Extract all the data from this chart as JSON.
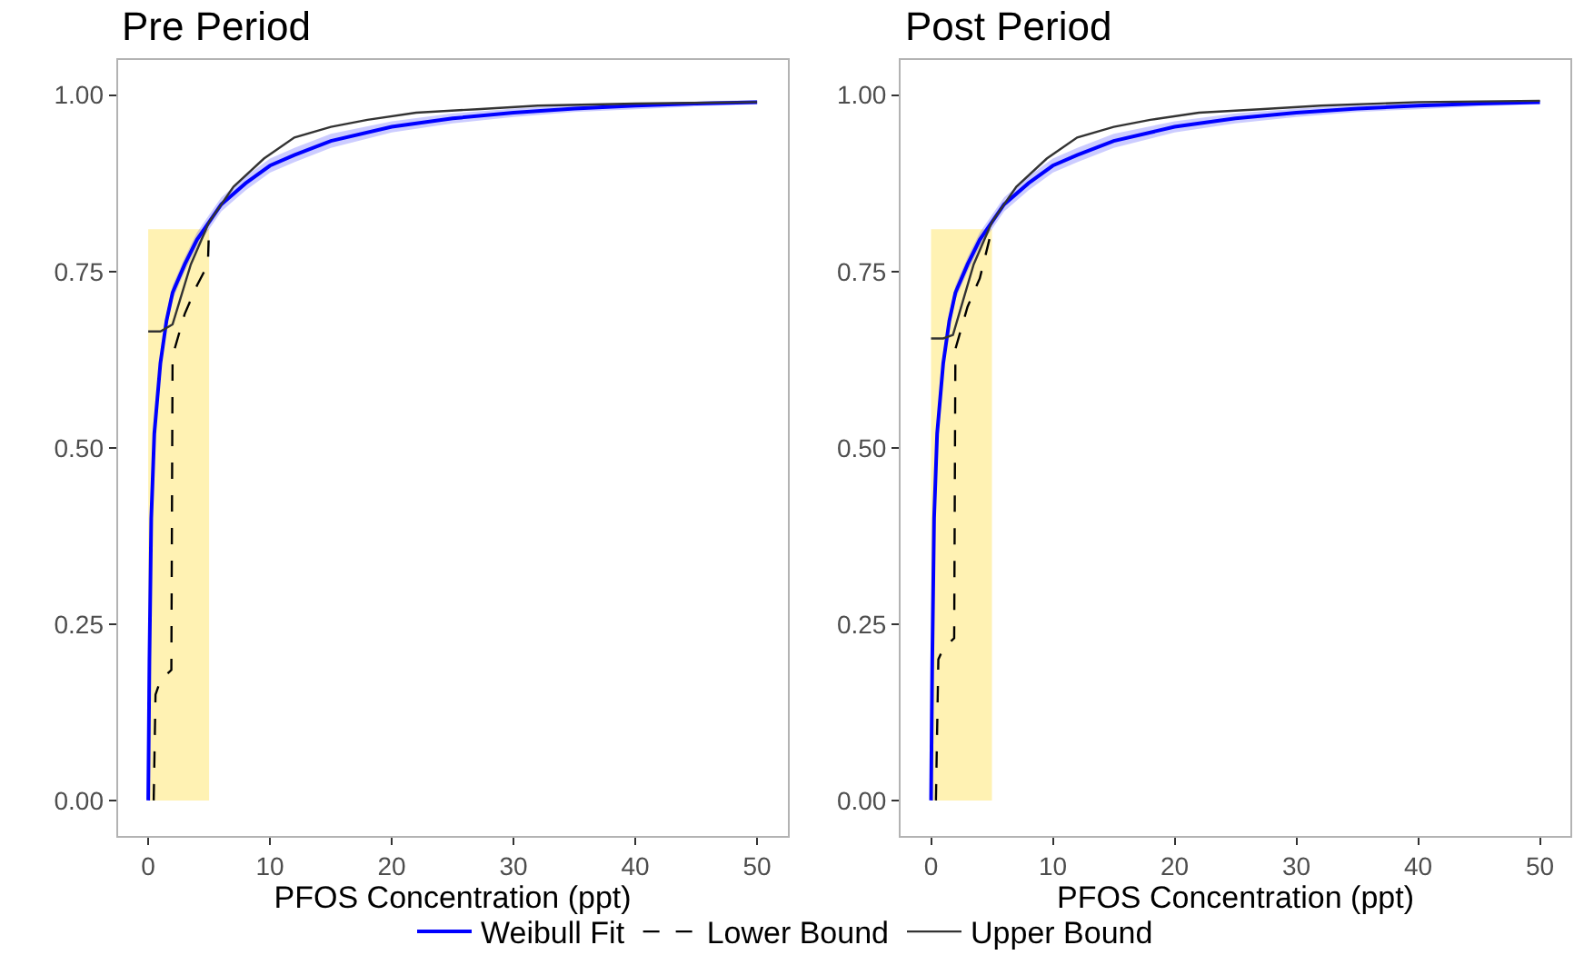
{
  "chart_data": [
    {
      "type": "line",
      "title": "Pre Period",
      "xlabel": "PFOS Concentration (ppt)",
      "xlim": [
        -2.5,
        52.5
      ],
      "ylim": [
        -0.05,
        1.05
      ],
      "xticks": [
        0,
        10,
        20,
        30,
        40,
        50
      ],
      "yticks": [
        {
          "value": 0,
          "label": "0.00"
        },
        {
          "value": 0.25,
          "label": "0.25"
        },
        {
          "value": 0.5,
          "label": "0.50"
        },
        {
          "value": 0.75,
          "label": "0.75"
        },
        {
          "value": 1,
          "label": "1.00"
        }
      ],
      "legend": "bottom",
      "series": [
        {
          "type": "area",
          "color": "#fff2b3",
          "x": [
            0,
            5
          ],
          "values": [
            0.81,
            0.81
          ]
        },
        {
          "name": "Weibull Fit",
          "color": "#0000ff",
          "x": [
            0,
            0.1,
            0.25,
            0.5,
            1,
            1.5,
            2,
            3,
            4,
            5,
            6,
            8,
            10,
            12,
            15,
            20,
            25,
            30,
            35,
            40,
            45,
            50
          ],
          "values": [
            0,
            0.2,
            0.4,
            0.52,
            0.62,
            0.68,
            0.72,
            0.76,
            0.795,
            0.82,
            0.845,
            0.875,
            0.9,
            0.915,
            0.935,
            0.955,
            0.967,
            0.975,
            0.981,
            0.985,
            0.988,
            0.99
          ],
          "lower": [
            0,
            0.19,
            0.39,
            0.51,
            0.61,
            0.67,
            0.71,
            0.75,
            0.785,
            0.81,
            0.835,
            0.865,
            0.89,
            0.905,
            0.925,
            0.947,
            0.96,
            0.969,
            0.976,
            0.98,
            0.984,
            0.987
          ],
          "upper": [
            0,
            0.21,
            0.41,
            0.53,
            0.63,
            0.69,
            0.73,
            0.77,
            0.805,
            0.83,
            0.855,
            0.885,
            0.91,
            0.925,
            0.945,
            0.963,
            0.974,
            0.981,
            0.986,
            0.989,
            0.991,
            0.993
          ]
        },
        {
          "name": "Lower Bound",
          "color": "#000000",
          "line_style": "dashed",
          "x": [
            0.45,
            0.6,
            1,
            1.9,
            2,
            3,
            4,
            4.9,
            5
          ],
          "values": [
            0,
            0.15,
            0.17,
            0.185,
            0.63,
            0.69,
            0.73,
            0.76,
            0.815
          ]
        },
        {
          "name": "Upper Bound",
          "color": "#333333",
          "x": [
            0,
            1,
            2,
            3.5,
            5,
            7,
            9.5,
            12,
            15,
            18,
            22,
            27,
            32,
            40,
            50
          ],
          "values": [
            0.665,
            0.665,
            0.675,
            0.76,
            0.82,
            0.87,
            0.91,
            0.94,
            0.955,
            0.965,
            0.975,
            0.98,
            0.985,
            0.988,
            0.99
          ]
        }
      ]
    },
    {
      "type": "line",
      "title": "Post Period",
      "xlabel": "PFOS Concentration (ppt)",
      "xlim": [
        -2.5,
        52.5
      ],
      "ylim": [
        -0.05,
        1.05
      ],
      "xticks": [
        0,
        10,
        20,
        30,
        40,
        50
      ],
      "yticks": [
        {
          "value": 0,
          "label": "0.00"
        },
        {
          "value": 0.25,
          "label": "0.25"
        },
        {
          "value": 0.5,
          "label": "0.50"
        },
        {
          "value": 0.75,
          "label": "0.75"
        },
        {
          "value": 1,
          "label": "1.00"
        }
      ],
      "legend": "bottom",
      "series": [
        {
          "type": "area",
          "color": "#fff2b3",
          "x": [
            0,
            5
          ],
          "values": [
            0.81,
            0.81
          ]
        },
        {
          "name": "Weibull Fit",
          "color": "#0000ff",
          "x": [
            0,
            0.1,
            0.25,
            0.5,
            1,
            1.5,
            2,
            3,
            4,
            5,
            6,
            8,
            10,
            12,
            15,
            20,
            25,
            30,
            35,
            40,
            45,
            50
          ],
          "values": [
            0,
            0.2,
            0.4,
            0.52,
            0.62,
            0.68,
            0.72,
            0.76,
            0.795,
            0.82,
            0.845,
            0.875,
            0.9,
            0.915,
            0.935,
            0.955,
            0.967,
            0.975,
            0.981,
            0.985,
            0.988,
            0.99
          ],
          "lower": [
            0,
            0.19,
            0.39,
            0.51,
            0.61,
            0.67,
            0.71,
            0.75,
            0.785,
            0.81,
            0.835,
            0.865,
            0.89,
            0.905,
            0.925,
            0.947,
            0.96,
            0.969,
            0.976,
            0.98,
            0.984,
            0.987
          ],
          "upper": [
            0,
            0.21,
            0.41,
            0.53,
            0.63,
            0.69,
            0.73,
            0.77,
            0.805,
            0.83,
            0.855,
            0.885,
            0.91,
            0.925,
            0.945,
            0.963,
            0.974,
            0.981,
            0.986,
            0.989,
            0.991,
            0.993
          ]
        },
        {
          "name": "Lower Bound",
          "color": "#000000",
          "line_style": "dashed",
          "x": [
            0.4,
            0.6,
            1,
            1.9,
            2,
            3,
            4,
            5
          ],
          "values": [
            0,
            0.2,
            0.215,
            0.23,
            0.64,
            0.7,
            0.74,
            0.81
          ]
        },
        {
          "name": "Upper Bound",
          "color": "#333333",
          "x": [
            0,
            1,
            1.8,
            3.5,
            5,
            7,
            9.5,
            12,
            15,
            18,
            22,
            27,
            32,
            40,
            50
          ],
          "values": [
            0.655,
            0.655,
            0.66,
            0.76,
            0.82,
            0.87,
            0.91,
            0.94,
            0.955,
            0.965,
            0.975,
            0.98,
            0.985,
            0.99,
            0.992
          ]
        }
      ]
    }
  ]
}
